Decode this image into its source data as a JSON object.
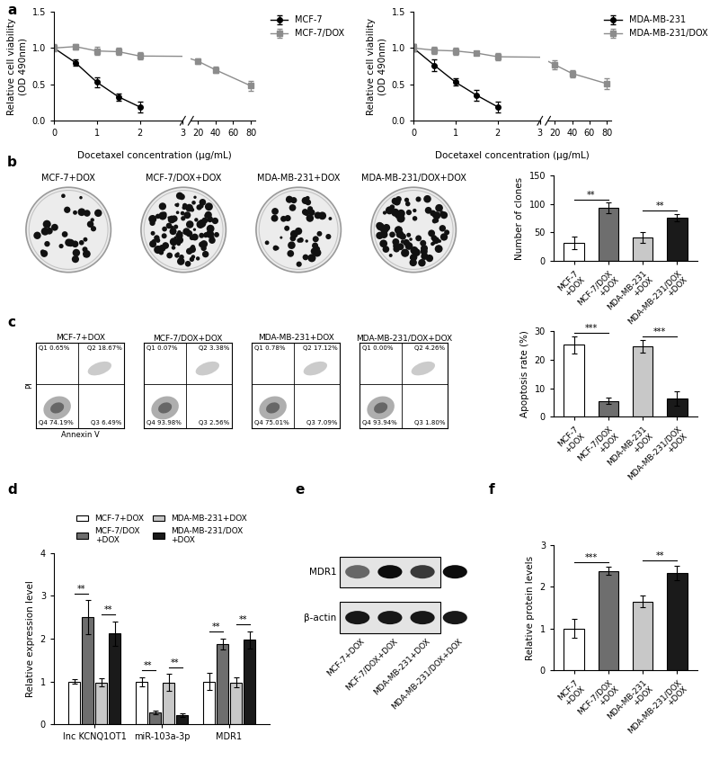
{
  "chart_data": [
    {
      "panel": "a",
      "type": "line",
      "xlabel": "Docetaxel concentration (μg/mL)",
      "ylabel": "Relative cell viability\n(OD 490nm)",
      "ylim": [
        0,
        1.5
      ],
      "yticks": [
        {
          "value": 0,
          "label": "0.0"
        },
        {
          "value": 0.5,
          "label": "0.5"
        },
        {
          "value": 1,
          "label": "1.0"
        },
        {
          "value": 1.5,
          "label": "1.5"
        }
      ],
      "xlim_segments": [
        [
          0,
          3
        ],
        [
          12,
          85
        ]
      ],
      "xticks_segments": [
        [
          0,
          1,
          2,
          3
        ],
        [
          20,
          40,
          60,
          80
        ]
      ],
      "legend": "upper right",
      "series": [
        {
          "name": "MCF-7",
          "color": "#000000",
          "marker": "circle",
          "x": [
            0,
            0.5,
            1,
            1.5,
            2
          ],
          "values": [
            1.0,
            0.8,
            0.53,
            0.33,
            0.19
          ],
          "errors": [
            0.03,
            0.04,
            0.07,
            0.05,
            0.07
          ]
        },
        {
          "name": "MCF-7/DOX",
          "color": "#8c8c8c",
          "marker": "square",
          "x": [
            0,
            0.5,
            1,
            1.5,
            2,
            20,
            40,
            80
          ],
          "values": [
            1.0,
            1.02,
            0.96,
            0.95,
            0.89,
            0.82,
            0.7,
            0.48
          ],
          "errors": [
            0.05,
            0.04,
            0.06,
            0.05,
            0.05,
            0.04,
            0.04,
            0.07
          ]
        }
      ]
    },
    {
      "panel": "a",
      "type": "line",
      "xlabel": "Docetaxel concentration (μg/mL)",
      "ylabel": "Relative cell viability\n(OD 490nm)",
      "ylim": [
        0,
        1.5
      ],
      "yticks": [
        {
          "value": 0,
          "label": "0.0"
        },
        {
          "value": 0.5,
          "label": "0.5"
        },
        {
          "value": 1,
          "label": "1.0"
        },
        {
          "value": 1.5,
          "label": "1.5"
        }
      ],
      "xlim_segments": [
        [
          0,
          3
        ],
        [
          12,
          85
        ]
      ],
      "xticks_segments": [
        [
          0,
          1,
          2,
          3
        ],
        [
          20,
          40,
          60,
          80
        ]
      ],
      "legend": "upper right",
      "series": [
        {
          "name": "MDA-MB-231",
          "color": "#000000",
          "marker": "circle",
          "x": [
            0,
            0.5,
            1,
            1.5,
            2
          ],
          "values": [
            1.0,
            0.76,
            0.53,
            0.35,
            0.19
          ],
          "errors": [
            0.05,
            0.08,
            0.05,
            0.07,
            0.07
          ]
        },
        {
          "name": "MDA-MB-231/DOX",
          "color": "#8c8c8c",
          "marker": "square",
          "x": [
            0,
            0.5,
            1,
            1.5,
            2,
            20,
            40,
            80
          ],
          "values": [
            1.0,
            0.97,
            0.96,
            0.93,
            0.88,
            0.77,
            0.65,
            0.51
          ],
          "errors": [
            0.05,
            0.05,
            0.05,
            0.03,
            0.05,
            0.06,
            0.05,
            0.07
          ]
        }
      ]
    },
    {
      "panel": "b",
      "type": "image",
      "titles": [
        "MCF-7+DOX",
        "MCF-7/DOX+DOX",
        "MDA-MB-231+DOX",
        "MDA-MB-231/DOX+DOX"
      ]
    },
    {
      "panel": "b",
      "type": "bar",
      "ylabel": "Number of clones",
      "categories": [
        "MCF-7\n+DOX",
        "MCF-7/DOX\n+DOX",
        "MDA-MB-231\n+DOX",
        "MDA-MB-231/DOX\n+DOX"
      ],
      "values": [
        31,
        93,
        41,
        76
      ],
      "errors": [
        11,
        9,
        10,
        6
      ],
      "colors": [
        "#ffffff",
        "#6e6e6e",
        "#c8c8c8",
        "#1a1a1a"
      ],
      "ylim": [
        0,
        150
      ],
      "yticks": [
        0,
        50,
        100,
        150
      ],
      "significance": [
        {
          "pair": [
            0,
            1
          ],
          "label": "**"
        },
        {
          "pair": [
            2,
            3
          ],
          "label": "**"
        }
      ]
    },
    {
      "panel": "c",
      "type": "flow_cytometry",
      "xlabel": "Annexin V",
      "ylabel": "PI",
      "tick_labels": false,
      "plots": [
        {
          "title": "MCF-7+DOX",
          "quadrants": [
            "Q1 0.65%",
            "Q2 18.67%",
            "Q3 6.49%",
            "Q4 74.19%"
          ]
        },
        {
          "title": "MCF-7/DOX+DOX",
          "quadrants": [
            "Q1 0.07%",
            "Q2 3.38%",
            "Q3 2.56%",
            "Q4 93.98%"
          ]
        },
        {
          "title": "MDA-MB-231+DOX",
          "quadrants": [
            "Q1 0.78%",
            "Q2 17.12%",
            "Q3 7.09%",
            "Q4 75.01%"
          ]
        },
        {
          "title": "MDA-MB-231/DOX+DOX",
          "quadrants": [
            "Q1 0.00%",
            "Q2 4.26%",
            "Q3 1.80%",
            "Q4 93.94%"
          ]
        }
      ]
    },
    {
      "panel": "c",
      "type": "bar",
      "ylabel": "Apoptosis rate (%)",
      "categories": [
        "MCF-7\n+DOX",
        "MCF-7/DOX\n+DOX",
        "MDA-MB-231\n+DOX",
        "MDA-MB-231/DOX\n+DOX"
      ],
      "values": [
        25.2,
        5.6,
        24.6,
        6.4
      ],
      "errors": [
        3.0,
        1.2,
        2.2,
        2.5
      ],
      "colors": [
        "#ffffff",
        "#6e6e6e",
        "#c8c8c8",
        "#1a1a1a"
      ],
      "ylim": [
        0,
        30
      ],
      "yticks": [
        0,
        10,
        20,
        30
      ],
      "significance": [
        {
          "pair": [
            0,
            1
          ],
          "label": "***"
        },
        {
          "pair": [
            2,
            3
          ],
          "label": "***"
        }
      ]
    },
    {
      "panel": "d",
      "type": "grouped_bar",
      "ylabel": "Relative expression level",
      "categories": [
        "lnc KCNQ1OT1",
        "miR-103a-3p",
        "MDR1"
      ],
      "legend": "top",
      "ylim": [
        0,
        4
      ],
      "yticks": [
        0,
        1,
        2,
        3,
        4
      ],
      "series": [
        {
          "name": "MCF-7+DOX",
          "color": "#ffffff",
          "values": [
            1.0,
            1.0,
            1.0
          ],
          "errors": [
            0.05,
            0.1,
            0.2
          ]
        },
        {
          "name": "MCF-7/DOX\n+DOX",
          "color": "#6e6e6e",
          "values": [
            2.5,
            0.28,
            1.88
          ],
          "errors": [
            0.4,
            0.05,
            0.12
          ]
        },
        {
          "name": "MDA-MB-231+DOX",
          "color": "#c8c8c8",
          "values": [
            0.98,
            0.98,
            0.98
          ],
          "errors": [
            0.1,
            0.2,
            0.12
          ]
        },
        {
          "name": "MDA-MB-231/DOX\n+DOX",
          "color": "#1a1a1a",
          "values": [
            2.12,
            0.22,
            1.98
          ],
          "errors": [
            0.28,
            0.04,
            0.2
          ]
        }
      ],
      "significance": [
        {
          "group": 0,
          "pair": [
            0,
            1
          ],
          "label": "**"
        },
        {
          "group": 0,
          "pair": [
            2,
            3
          ],
          "label": "**"
        },
        {
          "group": 1,
          "pair": [
            0,
            1
          ],
          "label": "**"
        },
        {
          "group": 1,
          "pair": [
            2,
            3
          ],
          "label": "**"
        },
        {
          "group": 2,
          "pair": [
            0,
            1
          ],
          "label": "**"
        },
        {
          "group": 2,
          "pair": [
            2,
            3
          ],
          "label": "**"
        }
      ]
    },
    {
      "panel": "e",
      "type": "western_blot",
      "rows": [
        "MDR1",
        "β-actin"
      ],
      "lanes": [
        "MCF-7+DOX",
        "MCF-7/DOX+DOX",
        "MDA-MB-231+DOX",
        "MDA-MB-231/DOX+DOX"
      ]
    },
    {
      "panel": "f",
      "type": "bar",
      "ylabel": "Relative protein levels",
      "categories": [
        "MCF-7\n+DOX",
        "MCF-7/DOX\n+DOX",
        "MDA-MB-231\n+DOX",
        "MDA-MB-231/DOX\n+DOX"
      ],
      "values": [
        1.0,
        2.38,
        1.65,
        2.33
      ],
      "errors": [
        0.22,
        0.1,
        0.15,
        0.18
      ],
      "colors": [
        "#ffffff",
        "#6e6e6e",
        "#c8c8c8",
        "#1a1a1a"
      ],
      "ylim": [
        0,
        3
      ],
      "yticks": [
        0,
        1,
        2,
        3
      ],
      "significance": [
        {
          "pair": [
            0,
            1
          ],
          "label": "***"
        },
        {
          "pair": [
            2,
            3
          ],
          "label": "**"
        }
      ]
    }
  ]
}
